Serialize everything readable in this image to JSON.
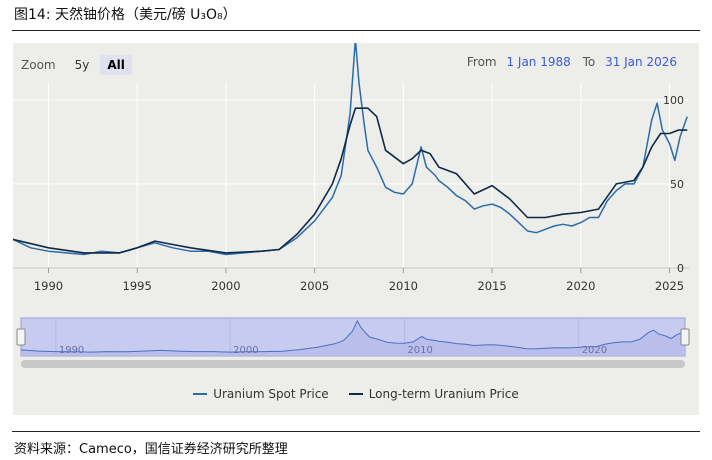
{
  "figure": {
    "title": "图14: 天然铀价格（美元/磅 U₃O₈）",
    "source": "资料来源：Cameco，国信证券经济研究所整理"
  },
  "toolbar": {
    "zoom_label": "Zoom",
    "buttons": [
      "5y",
      "All"
    ],
    "active": "All",
    "from_label": "From",
    "from_date": "1 Jan 1988",
    "to_label": "To",
    "to_date": "31 Jan 2026"
  },
  "colors": {
    "spot": "#2a6cab",
    "long_term": "#0f2a47",
    "navigator_fill": "#c7cbf0",
    "navigator_border": "#9aa0d8",
    "background": "#ededea"
  },
  "chart_data": {
    "type": "line",
    "title": "",
    "xlabel": "",
    "ylabel": "",
    "xlim": [
      1988,
      2026.1
    ],
    "ylim": [
      0,
      110
    ],
    "x_ticks": [
      1990,
      1995,
      2000,
      2005,
      2010,
      2015,
      2020,
      2025
    ],
    "x_tick_labels": [
      "1990",
      "1995",
      "2000",
      "2005",
      "2010",
      "2015",
      "2020",
      "2025"
    ],
    "y_ticks": [
      0,
      50,
      100
    ],
    "y_tick_labels": [
      "0",
      "50",
      "100"
    ],
    "grid": true,
    "legend_position": "bottom",
    "navigator_tick_labels": [
      "1990",
      "2000",
      "2010",
      "2020"
    ],
    "series": [
      {
        "name": "Uranium Spot Price",
        "x": [
          1988,
          1989,
          1990,
          1991,
          1992,
          1993,
          1994,
          1995,
          1996,
          1997,
          1998,
          1999,
          2000,
          2001,
          2002,
          2003,
          2004,
          2005,
          2006,
          2006.5,
          2007,
          2007.3,
          2007.5,
          2007.8,
          2008,
          2008.5,
          2009,
          2009.5,
          2010,
          2010.5,
          2011,
          2011.3,
          2011.8,
          2012,
          2012.5,
          2013,
          2013.5,
          2014,
          2014.5,
          2015,
          2015.5,
          2016,
          2016.5,
          2017,
          2017.5,
          2018,
          2018.5,
          2019,
          2019.5,
          2020,
          2020.5,
          2021,
          2021.5,
          2022,
          2022.5,
          2023,
          2023.5,
          2024,
          2024.3,
          2024.6,
          2025,
          2025.3,
          2025.6,
          2026
        ],
        "y": [
          17,
          12,
          10,
          9,
          8,
          10,
          9,
          12,
          15,
          12,
          10,
          10,
          8,
          9,
          10,
          11,
          18,
          28,
          42,
          55,
          92,
          136,
          110,
          85,
          70,
          60,
          48,
          45,
          44,
          50,
          72,
          60,
          55,
          52,
          48,
          43,
          40,
          35,
          37,
          38,
          36,
          32,
          27,
          22,
          21,
          23,
          25,
          26,
          25,
          27,
          30,
          30,
          40,
          46,
          50,
          50,
          60,
          88,
          98,
          82,
          74,
          64,
          78,
          90
        ]
      },
      {
        "name": "Long-term Uranium Price",
        "x": [
          1988,
          1990,
          1992,
          1994,
          1995,
          1996,
          1997,
          1998,
          2000,
          2002,
          2003,
          2004,
          2005,
          2006,
          2006.5,
          2007,
          2007.3,
          2008,
          2008.5,
          2009,
          2010,
          2010.5,
          2011,
          2011.5,
          2012,
          2013,
          2014,
          2015,
          2016,
          2017,
          2018,
          2019,
          2020,
          2021,
          2022,
          2023,
          2023.5,
          2024,
          2024.5,
          2025,
          2025.5,
          2026
        ],
        "y": [
          17,
          12,
          9,
          9,
          12,
          16,
          14,
          12,
          9,
          10,
          11,
          20,
          32,
          50,
          65,
          85,
          95,
          95,
          90,
          70,
          62,
          65,
          70,
          68,
          60,
          56,
          44,
          49,
          41,
          30,
          30,
          32,
          33,
          35,
          50,
          52,
          60,
          72,
          80,
          80,
          82,
          82
        ]
      }
    ]
  }
}
